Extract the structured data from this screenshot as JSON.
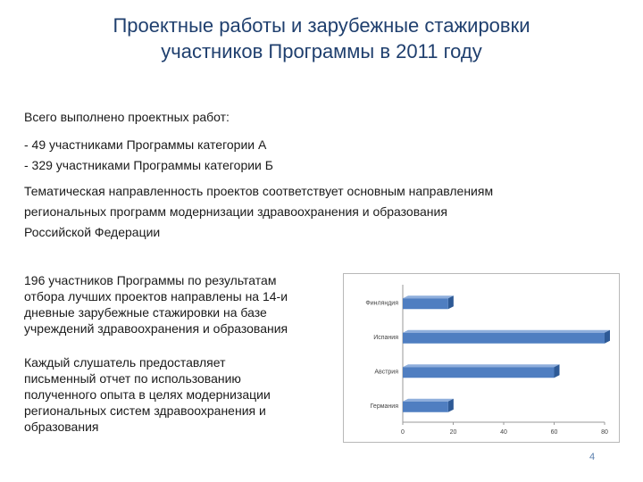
{
  "slide": {
    "title_line1": "Проектные работы и зарубежные стажировки",
    "title_line2": "участников Программы в 2011 году",
    "projects_intro": "Всего выполнено проектных работ:",
    "projects_list": [
      "- 49 участниками Программы категории А",
      "- 329 участниками Программы категории Б"
    ],
    "theme_line1": "Тематическая направленность проектов соответствует основным направлениям",
    "theme_line2": "региональных программ модернизации здравоохранения и образования",
    "theme_line3": "Российской Федерации",
    "internship_line1": "196 участников Программы по результатам",
    "internship_line2": "отбора лучших проектов направлены на 14-и",
    "internship_line3": "дневные зарубежные стажировки на базе",
    "internship_line4": "учреждений здравоохранения и образования",
    "report_line1": "Каждый слушатель предоставляет",
    "report_line2": "письменный отчет по использованию",
    "report_line3": "полученного опыта в целях модернизации",
    "report_line4": "региональных систем здравоохранения и",
    "report_line5": "образования",
    "page_number": "4"
  },
  "chart_data": {
    "type": "bar",
    "orientation": "horizontal",
    "categories": [
      "Финляндия",
      "Испания",
      "Австрия",
      "Германия"
    ],
    "values": [
      18,
      80,
      60,
      18
    ],
    "xlim": [
      0,
      80
    ],
    "xticks": [
      0,
      20,
      40,
      60,
      80
    ],
    "grid": false,
    "legend": "none",
    "bar_color": "#4f7ec1",
    "bar_side_color": "#2e5a96",
    "bar_top_color": "#8eaedc"
  }
}
